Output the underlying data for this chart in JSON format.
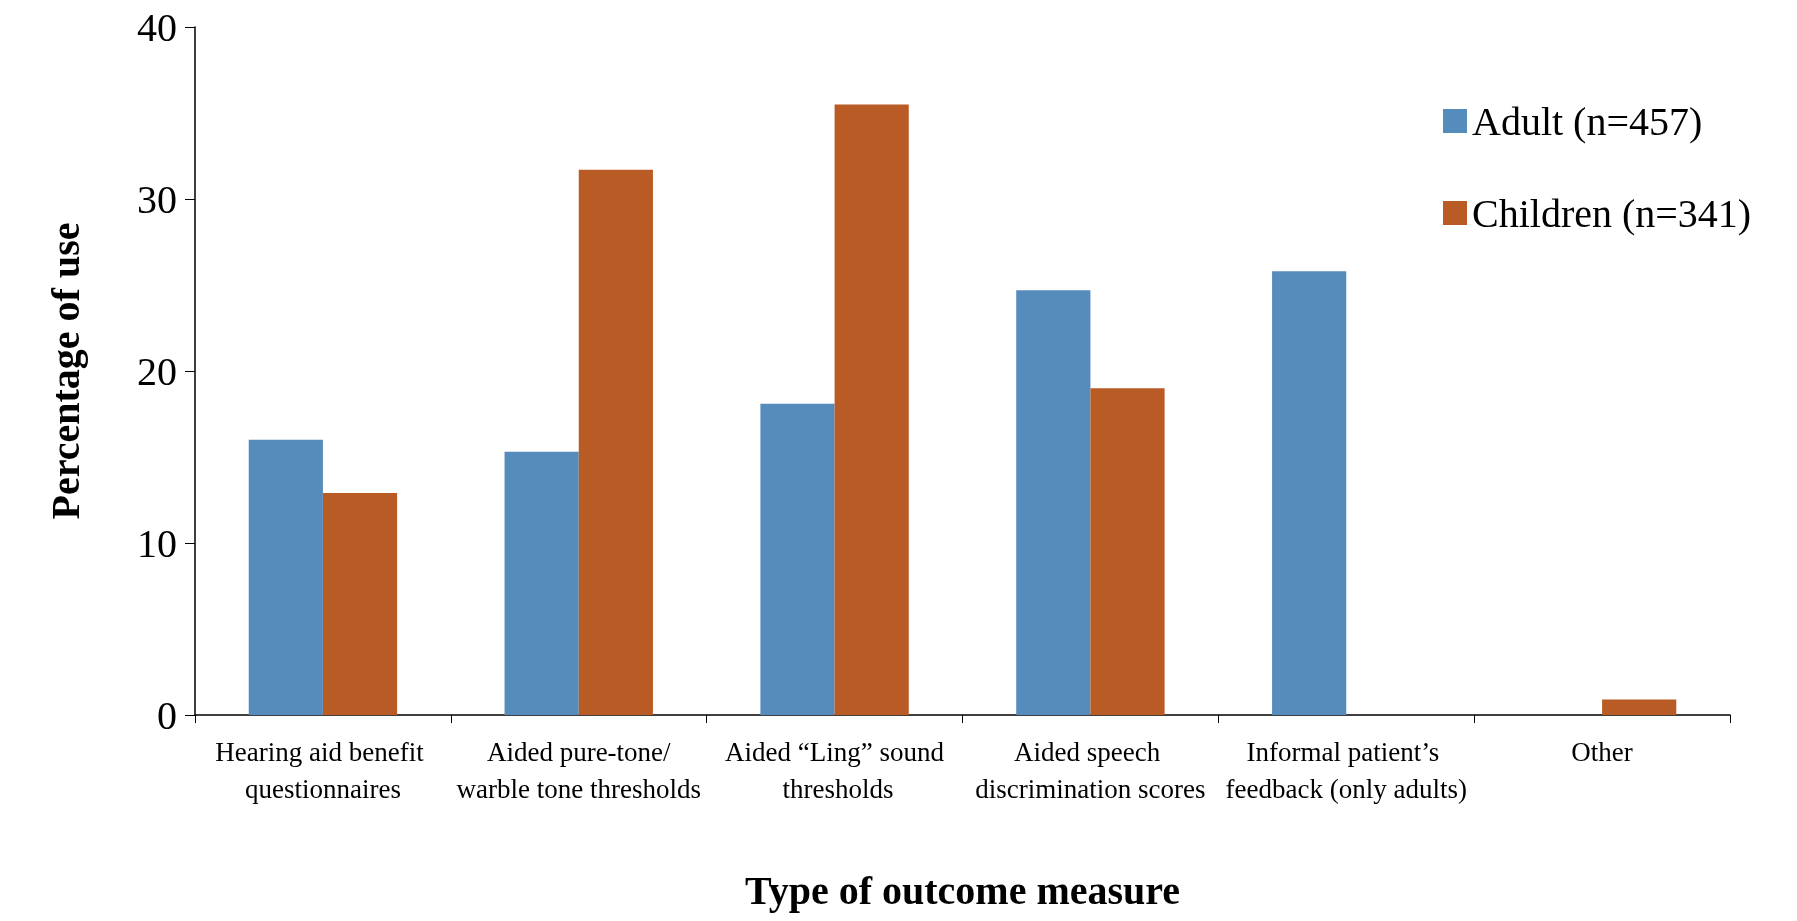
{
  "chart_data": {
    "type": "bar",
    "xlabel": "Type of outcome measure",
    "ylabel": "Percentage of use",
    "categories": [
      "Hearing aid benefit questionnaires",
      "Aided pure-tone/warble tone thresholds",
      "Aided “Ling” sound thresholds",
      "Aided speech discrimination scores",
      "Informal patient’s feedback (only adults)",
      "Other"
    ],
    "series": [
      {
        "name": "Adult (n=457)",
        "color": "#568cbc",
        "values": [
          16.0,
          15.3,
          18.1,
          24.7,
          25.8,
          0
        ]
      },
      {
        "name": "Children (n=341)",
        "color": "#b95b25",
        "values": [
          12.9,
          31.7,
          35.5,
          19.0,
          0,
          0.9
        ]
      }
    ],
    "ylim": [
      0,
      40
    ],
    "yticks": [
      0,
      10,
      20,
      30,
      40
    ],
    "grid": false,
    "legend": "top right"
  }
}
